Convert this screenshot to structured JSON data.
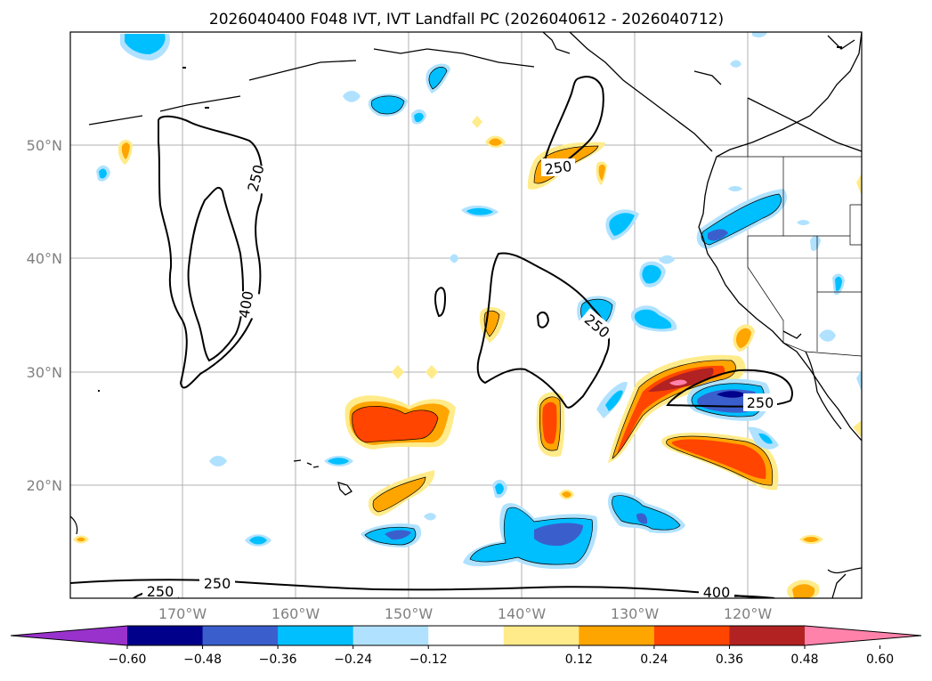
{
  "title": "2026040400 F048 IVT, IVT Landfall PC (2026040612 - 2026040712)",
  "lat_labels": [
    "50°N",
    "40°N",
    "30°N",
    "20°N"
  ],
  "lon_labels": [
    "170°W",
    "160°W",
    "150°W",
    "140°W",
    "130°W",
    "120°W"
  ],
  "colorbar": {
    "ticks": [
      "−0.60",
      "−0.48",
      "−0.36",
      "−0.24",
      "−0.12",
      "0.12",
      "0.24",
      "0.36",
      "0.48",
      "0.60"
    ],
    "colors": [
      "#9932cc",
      "#00008b",
      "#3a5fcd",
      "#00bfff",
      "#b0e2ff",
      "#ffffff",
      "#ffeb8a",
      "#ffa500",
      "#ff4500",
      "#b22222",
      "#ff82ab"
    ]
  },
  "contour_labels": [
    "250",
    "400",
    "250",
    "250",
    "250",
    "250",
    "250",
    "400"
  ],
  "colors": {
    "coast": "#000000",
    "grid": "#b0b0b0",
    "frame": "#000000"
  }
}
